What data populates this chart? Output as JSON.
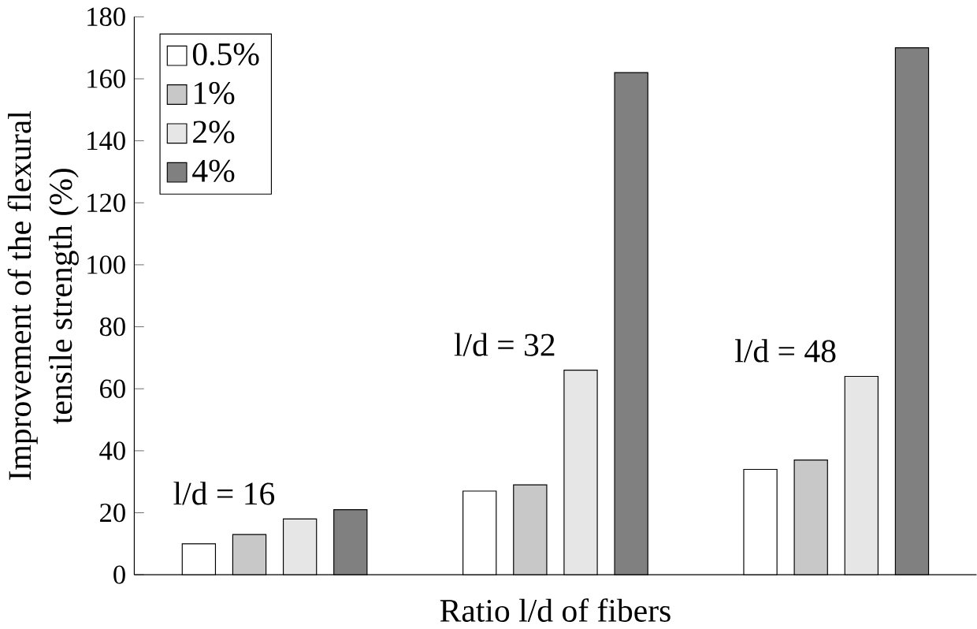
{
  "chart_data": {
    "type": "bar",
    "xlabel": "Ratio l/d of fibers",
    "ylabel": "Improvement of the flexural\ntensile strength (%)",
    "categories": [
      null,
      null,
      null
    ],
    "series": [
      {
        "name": "0.5%",
        "color": "#ffffff",
        "values": [
          10,
          27,
          34
        ]
      },
      {
        "name": "1%",
        "color": "#c8c8c8",
        "values": [
          13,
          29,
          37
        ]
      },
      {
        "name": "2%",
        "color": "#e6e6e6",
        "values": [
          18,
          66,
          64
        ]
      },
      {
        "name": "4%",
        "color": "#808080",
        "values": [
          21,
          162,
          170
        ]
      }
    ],
    "ylim": [
      0,
      180
    ],
    "yticks": [
      0,
      20,
      40,
      60,
      80,
      100,
      120,
      140,
      160,
      180
    ],
    "legend": "top left",
    "annotations": [
      "l/d = 16",
      "l/d = 32",
      "l/d = 48"
    ]
  }
}
